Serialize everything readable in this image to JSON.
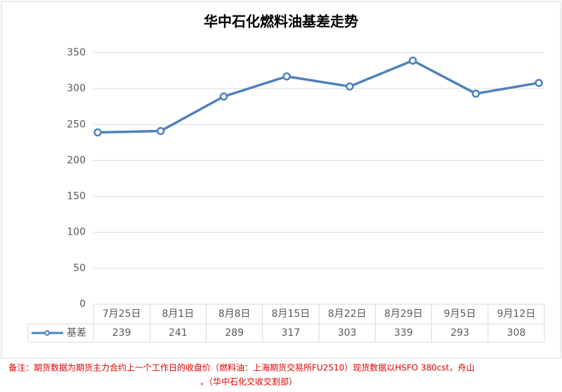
{
  "chart_data": {
    "type": "line",
    "title": "华中石化燃料油基差走势",
    "categories": [
      "7月25日",
      "8月1日",
      "8月8日",
      "8月15日",
      "8月22日",
      "8月29日",
      "9月5日",
      "9月12日"
    ],
    "series": [
      {
        "name": "基差",
        "color": "#4f81bd",
        "values": [
          239,
          241,
          289,
          317,
          303,
          339,
          293,
          308
        ]
      }
    ],
    "ylim": [
      0,
      350
    ],
    "yticks": [
      0,
      50,
      100,
      150,
      200,
      250,
      300,
      350
    ],
    "grid": true,
    "footnote": [
      "备注：期货数据为期货主力合约上一个工作日的收盘价（燃料油：上海期货交易所FU2510）现货数据以HSFO 380cst，舟山",
      "。（华中石化交收交割部）"
    ]
  }
}
